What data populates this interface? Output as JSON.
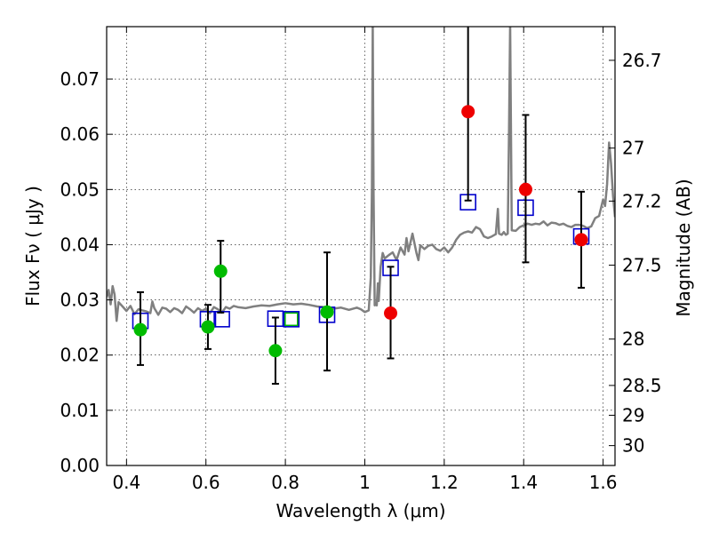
{
  "chart_data": {
    "type": "scatter",
    "xlabel": "Wavelength  λ (μm)",
    "ylabel": "Flux  Fν  ( μJy )",
    "ylabel_right": "Magnitude (AB)",
    "xlim": [
      0.35,
      1.63
    ],
    "ylim": [
      0.0,
      0.0795
    ],
    "x_ticks": [
      0.4,
      0.6,
      0.8,
      1.0,
      1.2,
      1.4,
      1.6
    ],
    "x_tick_labels": [
      "0.4",
      "0.6",
      "0.8",
      "1",
      "1.2",
      "1.4",
      "1.6"
    ],
    "y_ticks": [
      0.0,
      0.01,
      0.02,
      0.03,
      0.04,
      0.05,
      0.06,
      0.07
    ],
    "y_tick_labels": [
      "0.00",
      "0.01",
      "0.02",
      "0.03",
      "0.04",
      "0.05",
      "0.06",
      "0.07"
    ],
    "right_ticks": [
      {
        "label": "26.7",
        "flux": 0.0734
      },
      {
        "label": "27",
        "flux": 0.0575
      },
      {
        "label": "27.2",
        "flux": 0.0479
      },
      {
        "label": "27.5",
        "flux": 0.0363
      },
      {
        "label": "28",
        "flux": 0.0229
      },
      {
        "label": "28.5",
        "flux": 0.0145
      },
      {
        "label": "29",
        "flux": 0.0091
      },
      {
        "label": "30",
        "flux": 0.0036
      }
    ],
    "grid": true,
    "colors": {
      "spectrum": "#808080",
      "green_points": "#00bb00",
      "red_points": "#ee0000",
      "model_squares": "#0000cc",
      "model_square_green": "#00bb00",
      "error_bars": "#000000"
    },
    "spectrum": [
      [
        0.35,
        0.0305
      ],
      [
        0.355,
        0.0318
      ],
      [
        0.36,
        0.0292
      ],
      [
        0.365,
        0.0325
      ],
      [
        0.37,
        0.031
      ],
      [
        0.375,
        0.0262
      ],
      [
        0.38,
        0.0296
      ],
      [
        0.39,
        0.0288
      ],
      [
        0.4,
        0.028
      ],
      [
        0.41,
        0.0289
      ],
      [
        0.42,
        0.0274
      ],
      [
        0.43,
        0.0283
      ],
      [
        0.44,
        0.0281
      ],
      [
        0.45,
        0.0279
      ],
      [
        0.46,
        0.0276
      ],
      [
        0.465,
        0.0297
      ],
      [
        0.47,
        0.0285
      ],
      [
        0.48,
        0.0273
      ],
      [
        0.49,
        0.0286
      ],
      [
        0.5,
        0.0284
      ],
      [
        0.51,
        0.0278
      ],
      [
        0.52,
        0.0285
      ],
      [
        0.53,
        0.0282
      ],
      [
        0.54,
        0.0276
      ],
      [
        0.55,
        0.0288
      ],
      [
        0.56,
        0.0283
      ],
      [
        0.57,
        0.0277
      ],
      [
        0.58,
        0.0285
      ],
      [
        0.59,
        0.028
      ],
      [
        0.6,
        0.0284
      ],
      [
        0.61,
        0.0276
      ],
      [
        0.62,
        0.0287
      ],
      [
        0.63,
        0.0283
      ],
      [
        0.64,
        0.0277
      ],
      [
        0.65,
        0.0287
      ],
      [
        0.66,
        0.0284
      ],
      [
        0.67,
        0.0289
      ],
      [
        0.68,
        0.0287
      ],
      [
        0.7,
        0.0285
      ],
      [
        0.72,
        0.0288
      ],
      [
        0.74,
        0.029
      ],
      [
        0.76,
        0.0289
      ],
      [
        0.78,
        0.0292
      ],
      [
        0.8,
        0.0294
      ],
      [
        0.82,
        0.0292
      ],
      [
        0.84,
        0.0293
      ],
      [
        0.86,
        0.0291
      ],
      [
        0.88,
        0.0288
      ],
      [
        0.9,
        0.0287
      ],
      [
        0.92,
        0.0284
      ],
      [
        0.94,
        0.0286
      ],
      [
        0.96,
        0.0282
      ],
      [
        0.98,
        0.0286
      ],
      [
        0.99,
        0.0283
      ],
      [
        1.0,
        0.0278
      ],
      [
        1.01,
        0.0281
      ],
      [
        1.015,
        0.034
      ],
      [
        1.018,
        0.05
      ],
      [
        1.02,
        0.08
      ],
      [
        1.022,
        0.05
      ],
      [
        1.025,
        0.029
      ],
      [
        1.027,
        0.0293
      ],
      [
        1.03,
        0.029
      ],
      [
        1.033,
        0.033
      ],
      [
        1.035,
        0.0298
      ],
      [
        1.04,
        0.036
      ],
      [
        1.045,
        0.0385
      ],
      [
        1.05,
        0.0375
      ],
      [
        1.06,
        0.0381
      ],
      [
        1.07,
        0.0386
      ],
      [
        1.08,
        0.0372
      ],
      [
        1.09,
        0.0395
      ],
      [
        1.1,
        0.0382
      ],
      [
        1.105,
        0.0412
      ],
      [
        1.11,
        0.0388
      ],
      [
        1.12,
        0.042
      ],
      [
        1.13,
        0.0385
      ],
      [
        1.135,
        0.0372
      ],
      [
        1.14,
        0.0399
      ],
      [
        1.15,
        0.0392
      ],
      [
        1.16,
        0.0398
      ],
      [
        1.17,
        0.04
      ],
      [
        1.18,
        0.0392
      ],
      [
        1.19,
        0.0389
      ],
      [
        1.2,
        0.0395
      ],
      [
        1.21,
        0.0386
      ],
      [
        1.22,
        0.0395
      ],
      [
        1.23,
        0.0409
      ],
      [
        1.24,
        0.0418
      ],
      [
        1.25,
        0.0422
      ],
      [
        1.26,
        0.0424
      ],
      [
        1.27,
        0.0422
      ],
      [
        1.28,
        0.0432
      ],
      [
        1.29,
        0.0428
      ],
      [
        1.3,
        0.0415
      ],
      [
        1.31,
        0.0412
      ],
      [
        1.32,
        0.0415
      ],
      [
        1.33,
        0.0419
      ],
      [
        1.335,
        0.0465
      ],
      [
        1.338,
        0.042
      ],
      [
        1.345,
        0.0418
      ],
      [
        1.35,
        0.0423
      ],
      [
        1.355,
        0.0418
      ],
      [
        1.36,
        0.042
      ],
      [
        1.363,
        0.06
      ],
      [
        1.366,
        0.08
      ],
      [
        1.37,
        0.0426
      ],
      [
        1.38,
        0.0425
      ],
      [
        1.39,
        0.0432
      ],
      [
        1.4,
        0.0435
      ],
      [
        1.41,
        0.0438
      ],
      [
        1.42,
        0.0436
      ],
      [
        1.43,
        0.0438
      ],
      [
        1.44,
        0.0437
      ],
      [
        1.45,
        0.0442
      ],
      [
        1.46,
        0.0435
      ],
      [
        1.47,
        0.044
      ],
      [
        1.48,
        0.0439
      ],
      [
        1.49,
        0.0436
      ],
      [
        1.5,
        0.0438
      ],
      [
        1.51,
        0.0434
      ],
      [
        1.52,
        0.0432
      ],
      [
        1.53,
        0.0436
      ],
      [
        1.54,
        0.0436
      ],
      [
        1.55,
        0.0434
      ],
      [
        1.56,
        0.043
      ],
      [
        1.57,
        0.0433
      ],
      [
        1.58,
        0.0448
      ],
      [
        1.59,
        0.0452
      ],
      [
        1.6,
        0.0482
      ],
      [
        1.605,
        0.047
      ],
      [
        1.61,
        0.051
      ],
      [
        1.615,
        0.0585
      ],
      [
        1.62,
        0.0548
      ],
      [
        1.625,
        0.0488
      ],
      [
        1.63,
        0.045
      ]
    ],
    "model_squares": [
      {
        "x": 0.435,
        "y": 0.0262,
        "color": "blue"
      },
      {
        "x": 0.605,
        "y": 0.0265,
        "color": "blue"
      },
      {
        "x": 0.64,
        "y": 0.0265,
        "color": "blue"
      },
      {
        "x": 0.775,
        "y": 0.0266,
        "color": "blue"
      },
      {
        "x": 0.815,
        "y": 0.0265,
        "color": "green"
      },
      {
        "x": 0.815,
        "y": 0.0265,
        "color": "blue"
      },
      {
        "x": 0.905,
        "y": 0.0273,
        "color": "blue"
      },
      {
        "x": 1.065,
        "y": 0.0358,
        "color": "blue"
      },
      {
        "x": 1.26,
        "y": 0.0477,
        "color": "blue"
      },
      {
        "x": 1.405,
        "y": 0.0467,
        "color": "blue"
      },
      {
        "x": 1.545,
        "y": 0.0415,
        "color": "blue"
      }
    ],
    "detections": [
      {
        "x": 0.435,
        "y": 0.0246,
        "err_low": 0.0064,
        "err_high": 0.0068
      },
      {
        "x": 0.605,
        "y": 0.0251,
        "err_low": 0.004,
        "err_high": 0.004
      },
      {
        "x": 0.637,
        "y": 0.0352,
        "err_low": 0.0075,
        "err_high": 0.0055
      },
      {
        "x": 0.775,
        "y": 0.0208,
        "err_low": 0.006,
        "err_high": 0.006
      },
      {
        "x": 0.905,
        "y": 0.0278,
        "err_low": 0.0106,
        "err_high": 0.0108
      }
    ],
    "red_points": [
      {
        "x": 1.065,
        "y": 0.0276,
        "err_low": 0.0082,
        "err_high": 0.0084
      },
      {
        "x": 1.26,
        "y": 0.0641,
        "err_low": 0.0161,
        "err_high": 0.0159
      },
      {
        "x": 1.405,
        "y": 0.05,
        "err_low": 0.0132,
        "err_high": 0.0135
      },
      {
        "x": 1.545,
        "y": 0.0409,
        "err_low": 0.0087,
        "err_high": 0.0087
      }
    ]
  }
}
